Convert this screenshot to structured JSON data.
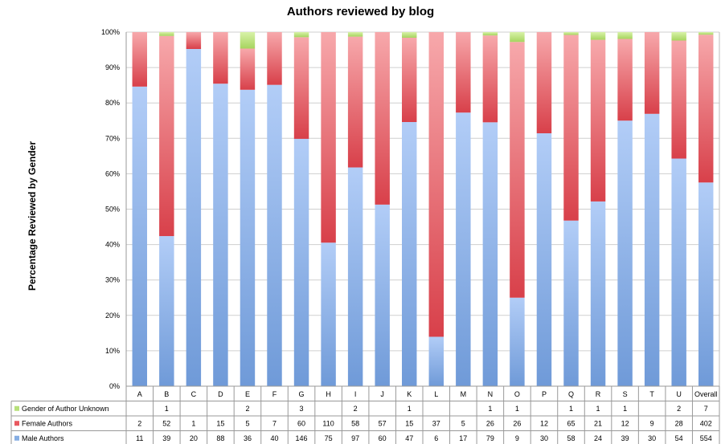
{
  "chart_data": {
    "type": "bar",
    "stacked": "percent",
    "title": "Authors reviewed by blog",
    "ylabel": "Percentage Reviewed by Gender",
    "xlabel": "",
    "ylim": [
      0,
      100
    ],
    "y_ticks": [
      "0%",
      "10%",
      "20%",
      "30%",
      "40%",
      "50%",
      "60%",
      "70%",
      "80%",
      "90%",
      "100%"
    ],
    "grid": true,
    "legend": "bottom-left (in data table)",
    "categories": [
      "A",
      "B",
      "C",
      "D",
      "E",
      "F",
      "G",
      "H",
      "I",
      "J",
      "K",
      "L",
      "M",
      "N",
      "O",
      "P",
      "Q",
      "R",
      "S",
      "T",
      "U",
      "Overall"
    ],
    "series": [
      {
        "name": "Gender of Author Unknown",
        "color": "#b7e07a",
        "values": [
          null,
          1,
          null,
          null,
          2,
          null,
          3,
          null,
          2,
          null,
          1,
          null,
          null,
          1,
          1,
          null,
          1,
          1,
          1,
          null,
          2,
          7
        ]
      },
      {
        "name": "Female Authors",
        "color": "#e8585f",
        "values": [
          2,
          52,
          1,
          15,
          5,
          7,
          60,
          110,
          58,
          57,
          15,
          37,
          5,
          26,
          26,
          12,
          65,
          21,
          12,
          9,
          28,
          402
        ]
      },
      {
        "name": "Male Authors",
        "color": "#86aee3",
        "values": [
          11,
          39,
          20,
          88,
          36,
          40,
          146,
          75,
          97,
          60,
          47,
          6,
          17,
          79,
          9,
          30,
          58,
          24,
          39,
          30,
          54,
          554
        ]
      }
    ]
  }
}
